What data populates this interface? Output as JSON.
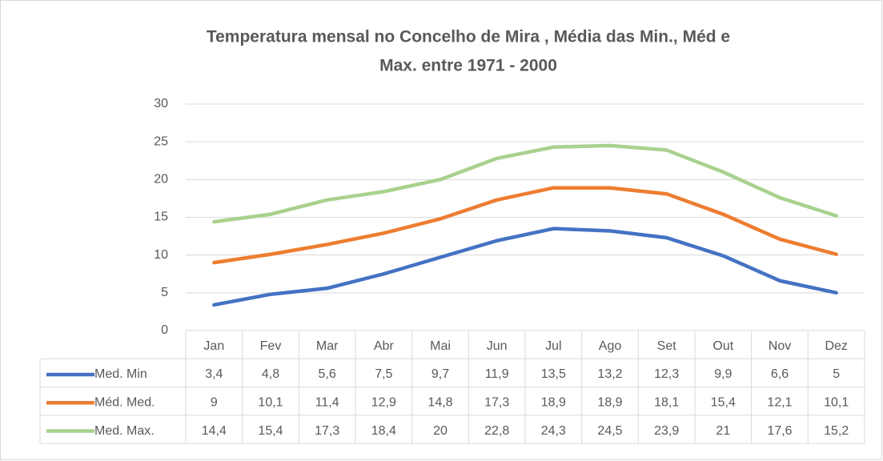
{
  "chart_data": {
    "type": "line",
    "title": [
      "Temperatura mensal no Concelho de Mira  , Média das Min., Méd e",
      "Max. entre 1971 - 2000"
    ],
    "categories": [
      "Jan",
      "Fev",
      "Mar",
      "Abr",
      "Mai",
      "Jun",
      "Jul",
      "Ago",
      "Set",
      "Out",
      "Nov",
      "Dez"
    ],
    "series": [
      {
        "name": "Med. Min",
        "color": "#4472c4",
        "values": [
          3.4,
          4.8,
          5.6,
          7.5,
          9.7,
          11.9,
          13.5,
          13.2,
          12.3,
          9.9,
          6.6,
          5
        ],
        "value_labels": [
          "3,4",
          "4,8",
          "5,6",
          "7,5",
          "9,7",
          "11,9",
          "13,5",
          "13,2",
          "12,3",
          "9,9",
          "6,6",
          "5"
        ]
      },
      {
        "name": "Méd. Med.",
        "color": "#ed7d31",
        "values": [
          9,
          10.1,
          11.4,
          12.9,
          14.8,
          17.3,
          18.9,
          18.9,
          18.1,
          15.4,
          12.1,
          10.1
        ],
        "value_labels": [
          "9",
          "10,1",
          "11,4",
          "12,9",
          "14,8",
          "17,3",
          "18,9",
          "18,9",
          "18,1",
          "15,4",
          "12,1",
          "10,1"
        ]
      },
      {
        "name": "Med. Max.",
        "color": "#a9d18e",
        "values": [
          14.4,
          15.4,
          17.3,
          18.4,
          20,
          22.8,
          24.3,
          24.5,
          23.9,
          21,
          17.6,
          15.2
        ],
        "value_labels": [
          "14,4",
          "15,4",
          "17,3",
          "18,4",
          "20",
          "22,8",
          "24,3",
          "24,5",
          "23,9",
          "21",
          "17,6",
          "15,2"
        ]
      }
    ],
    "ylim": [
      0,
      30
    ],
    "yticks": [
      0,
      5,
      10,
      15,
      20,
      25,
      30
    ],
    "grid": true
  }
}
